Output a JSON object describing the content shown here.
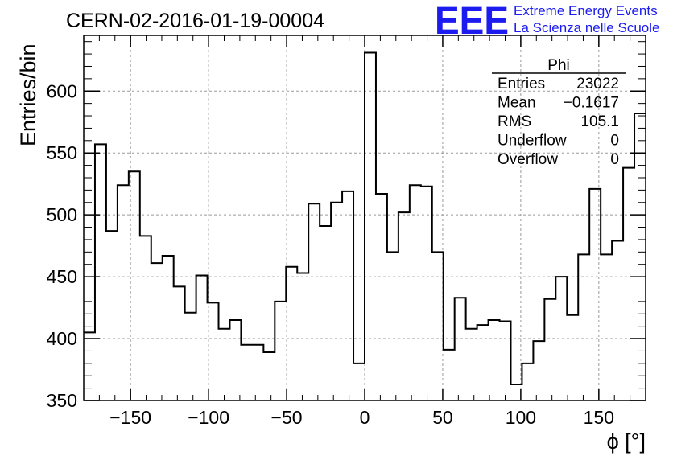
{
  "run_title": "CERN-02-2016-01-19-00004",
  "logo": {
    "mark": "EEE",
    "line1": "Extreme Energy Events",
    "line2": "La Scienza nelle Scuole",
    "color": "#1c1cf0"
  },
  "stats": {
    "title": "Phi",
    "rows": [
      {
        "label": "Entries",
        "value": "23022"
      },
      {
        "label": "Mean",
        "value": "−0.1617"
      },
      {
        "label": "RMS",
        "value": "105.1"
      },
      {
        "label": "Underflow",
        "value": "0"
      },
      {
        "label": "Overflow",
        "value": "0"
      }
    ]
  },
  "chart_data": {
    "type": "bar",
    "style": "step-histogram",
    "title": "CERN-02-2016-01-19-00004",
    "xlabel": "ϕ [°]",
    "ylabel": "Entries/bin",
    "xlim": [
      -180,
      180
    ],
    "ylim": [
      350,
      645
    ],
    "bin_width": 7.2,
    "x_ticks": [
      -150,
      -100,
      -50,
      0,
      50,
      100,
      150
    ],
    "x_tick_labels": [
      "−150",
      "−100",
      "−50",
      "0",
      "50",
      "100",
      "150"
    ],
    "y_ticks": [
      350,
      400,
      450,
      500,
      550,
      600
    ],
    "y_tick_labels": [
      "350",
      "400",
      "450",
      "500",
      "550",
      "600"
    ],
    "grid": true,
    "legend": "top-right stats box",
    "values": [
      405,
      557,
      487,
      524,
      535,
      483,
      461,
      467,
      442,
      421,
      451,
      429,
      408,
      415,
      395,
      395,
      389,
      430,
      458,
      453,
      509,
      491,
      510,
      519,
      380,
      631,
      517,
      470,
      502,
      524,
      523,
      470,
      391,
      433,
      408,
      411,
      415,
      414,
      363,
      380,
      398,
      432,
      450,
      419,
      468,
      521,
      468,
      479,
      538,
      582
    ]
  }
}
